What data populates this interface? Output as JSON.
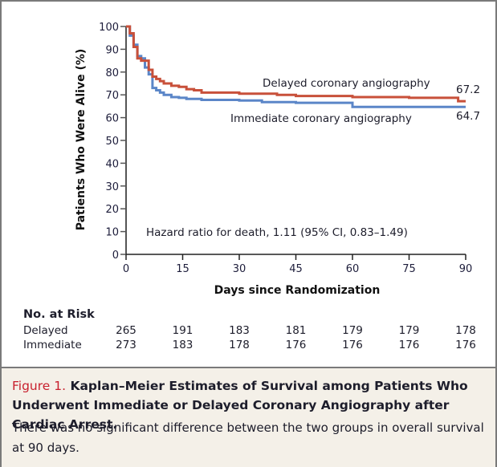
{
  "chart_data": {
    "type": "line",
    "subtype": "kaplan-meier-step",
    "title": "Figure 1. Kaplan–Meier Estimates of Survival among Patients Who Underwent Immediate or Delayed Coronary Angiography after Cardiac Arrest.",
    "xlabel": "Days since Randomization",
    "ylabel": "Patients Who Were Alive (%)",
    "xlim": [
      0,
      90
    ],
    "ylim": [
      0,
      100
    ],
    "xticks": [
      0,
      15,
      30,
      45,
      60,
      75,
      90
    ],
    "yticks": [
      0,
      10,
      20,
      30,
      40,
      50,
      60,
      70,
      80,
      90,
      100
    ],
    "grid": false,
    "series": [
      {
        "name": "Delayed coronary angiography",
        "color": "#c8503a",
        "end_label": "67.2",
        "x": [
          0,
          1,
          2,
          3,
          4,
          6,
          7,
          8,
          9,
          10,
          12,
          14,
          16,
          18,
          20,
          24,
          30,
          40,
          45,
          60,
          75,
          88,
          90
        ],
        "y": [
          100,
          97,
          91,
          86,
          85,
          81,
          78,
          77,
          76,
          75,
          74,
          73.5,
          72.5,
          72,
          71,
          71,
          70.5,
          70,
          69.5,
          69,
          68.7,
          67.2,
          67.2
        ]
      },
      {
        "name": "Immediate coronary angiography",
        "color": "#5b86c8",
        "end_label": "64.7",
        "x": [
          0,
          1,
          2,
          3,
          4,
          5,
          6,
          7,
          8,
          9,
          10,
          12,
          14,
          16,
          20,
          30,
          36,
          45,
          60,
          75,
          90
        ],
        "y": [
          100,
          96,
          92,
          87,
          86,
          82,
          79,
          73,
          72,
          71,
          70,
          69,
          68.7,
          68.2,
          67.8,
          67.5,
          66.8,
          66.5,
          64.7,
          64.7,
          64.7
        ]
      }
    ],
    "annotations": [
      {
        "text": "Delayed coronary angiography"
      },
      {
        "text": "Immediate coronary angiography"
      },
      {
        "text": "Hazard ratio for death, 1.11 (95% CI, 0.83–1.49)"
      }
    ],
    "hazard_ratio": {
      "text": "Hazard ratio for death, 1.11 (95% CI, 0.83–1.49)",
      "value": 1.11,
      "ci_low": 0.83,
      "ci_high": 1.49
    }
  },
  "risk_table": {
    "header": "No. at Risk",
    "columns": [
      0,
      15,
      30,
      45,
      60,
      75,
      90
    ],
    "rows": [
      {
        "label": "Delayed",
        "values": [
          "265",
          "191",
          "183",
          "181",
          "179",
          "179",
          "178"
        ]
      },
      {
        "label": "Immediate",
        "values": [
          "273",
          "183",
          "178",
          "176",
          "176",
          "176",
          "176"
        ]
      }
    ]
  },
  "caption": {
    "figure_label": "Figure 1.",
    "title": " Kaplan–Meier Estimates of Survival among Patients Who Under­went Immediate or Delayed Coronary Angiography after Cardiac Arrest.",
    "body": "There was no significant difference between the two groups in overall sur­vival at 90 days."
  }
}
